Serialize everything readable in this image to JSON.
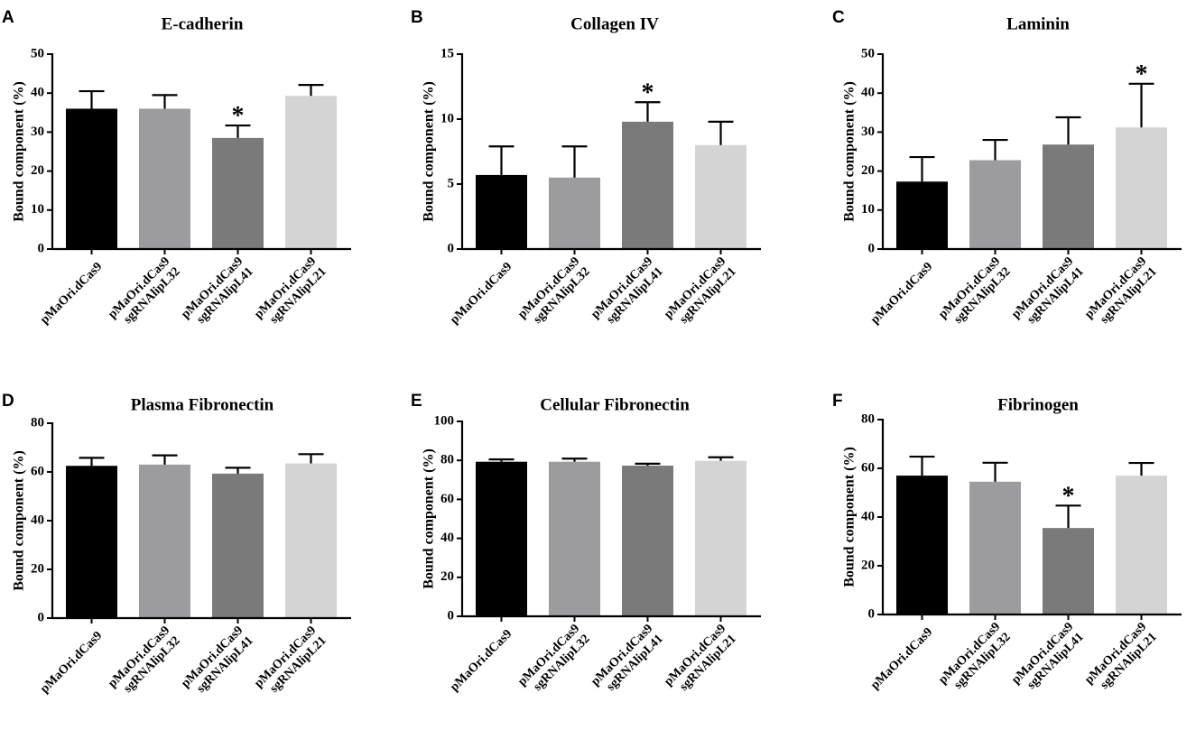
{
  "figure": {
    "group_labels": [
      [
        "pMaOri.dCas9"
      ],
      [
        "pMaOri.dCas9",
        "sgRNAlipL32"
      ],
      [
        "pMaOri.dCas9",
        "sgRNAlipL41"
      ],
      [
        "pMaOri.dCas9",
        "sgRNAlipL21"
      ]
    ],
    "bar_colors": [
      "#000000",
      "#9c9c9e",
      "#7a7a7a",
      "#d4d4d4"
    ],
    "significance_symbol": "*"
  },
  "chart_data": [
    {
      "type": "bar",
      "panel": "A",
      "title": "E-cadherin",
      "ylabel": "Bound component (%)",
      "ylim": [
        0,
        50
      ],
      "yticks": [
        0,
        10,
        20,
        30,
        40,
        50
      ],
      "categories": [
        "pMaOri.dCas9",
        "pMaOri.dCas9 sgRNAlipL32",
        "pMaOri.dCas9 sgRNAlipL41",
        "pMaOri.dCas9 sgRNAlipL21"
      ],
      "values": [
        36,
        36,
        28.5,
        39.3
      ],
      "errors": [
        4.5,
        3.5,
        3.2,
        2.8
      ],
      "significant": [
        false,
        false,
        true,
        false
      ]
    },
    {
      "type": "bar",
      "panel": "B",
      "title": "Collagen IV",
      "ylabel": "Bound component (%)",
      "ylim": [
        0,
        15
      ],
      "yticks": [
        0,
        5,
        10,
        15
      ],
      "categories": [
        "pMaOri.dCas9",
        "pMaOri.dCas9 sgRNAlipL32",
        "pMaOri.dCas9 sgRNAlipL41",
        "pMaOri.dCas9 sgRNAlipL21"
      ],
      "values": [
        5.7,
        5.5,
        9.8,
        8.0
      ],
      "errors": [
        2.2,
        2.4,
        1.5,
        1.8
      ],
      "significant": [
        false,
        false,
        true,
        false
      ]
    },
    {
      "type": "bar",
      "panel": "C",
      "title": "Laminin",
      "ylabel": "Bound component (%)",
      "ylim": [
        0,
        50
      ],
      "yticks": [
        0,
        10,
        20,
        30,
        40,
        50
      ],
      "categories": [
        "pMaOri.dCas9",
        "pMaOri.dCas9 sgRNAlipL32",
        "pMaOri.dCas9 sgRNAlipL41",
        "pMaOri.dCas9 sgRNAlipL21"
      ],
      "values": [
        17.3,
        22.8,
        26.8,
        31.2
      ],
      "errors": [
        6.3,
        5.2,
        7.0,
        11.2
      ],
      "significant": [
        false,
        false,
        false,
        true
      ]
    },
    {
      "type": "bar",
      "panel": "D",
      "title": "Plasma Fibronectin",
      "ylabel": "Bound component (%)",
      "ylim": [
        0,
        80
      ],
      "yticks": [
        0,
        20,
        40,
        60,
        80
      ],
      "categories": [
        "pMaOri.dCas9",
        "pMaOri.dCas9 sgRNAlipL32",
        "pMaOri.dCas9 sgRNAlipL41",
        "pMaOri.dCas9 sgRNAlipL21"
      ],
      "values": [
        62.5,
        63,
        59.3,
        63.5
      ],
      "errors": [
        3.3,
        3.8,
        2.4,
        3.8
      ],
      "significant": [
        false,
        false,
        false,
        false
      ]
    },
    {
      "type": "bar",
      "panel": "E",
      "title": "Cellular Fibronectin",
      "ylabel": "Bound component (%)",
      "ylim": [
        0,
        100
      ],
      "yticks": [
        0,
        20,
        40,
        60,
        80,
        100
      ],
      "categories": [
        "pMaOri.dCas9",
        "pMaOri.dCas9 sgRNAlipL32",
        "pMaOri.dCas9 sgRNAlipL41",
        "pMaOri.dCas9 sgRNAlipL21"
      ],
      "values": [
        79.3,
        79.3,
        77.3,
        79.8
      ],
      "errors": [
        1.2,
        1.6,
        1.0,
        1.8
      ],
      "significant": [
        false,
        false,
        false,
        false
      ]
    },
    {
      "type": "bar",
      "panel": "F",
      "title": "Fibrinogen",
      "ylabel": "Bound component (%)",
      "ylim": [
        0,
        80
      ],
      "yticks": [
        0,
        20,
        40,
        60,
        80
      ],
      "categories": [
        "pMaOri.dCas9",
        "pMaOri.dCas9 sgRNAlipL32",
        "pMaOri.dCas9 sgRNAlipL41",
        "pMaOri.dCas9 sgRNAlipL21"
      ],
      "values": [
        57,
        54.5,
        35.5,
        57
      ],
      "errors": [
        7.8,
        7.8,
        9.2,
        5.2
      ],
      "significant": [
        false,
        false,
        true,
        false
      ]
    }
  ]
}
